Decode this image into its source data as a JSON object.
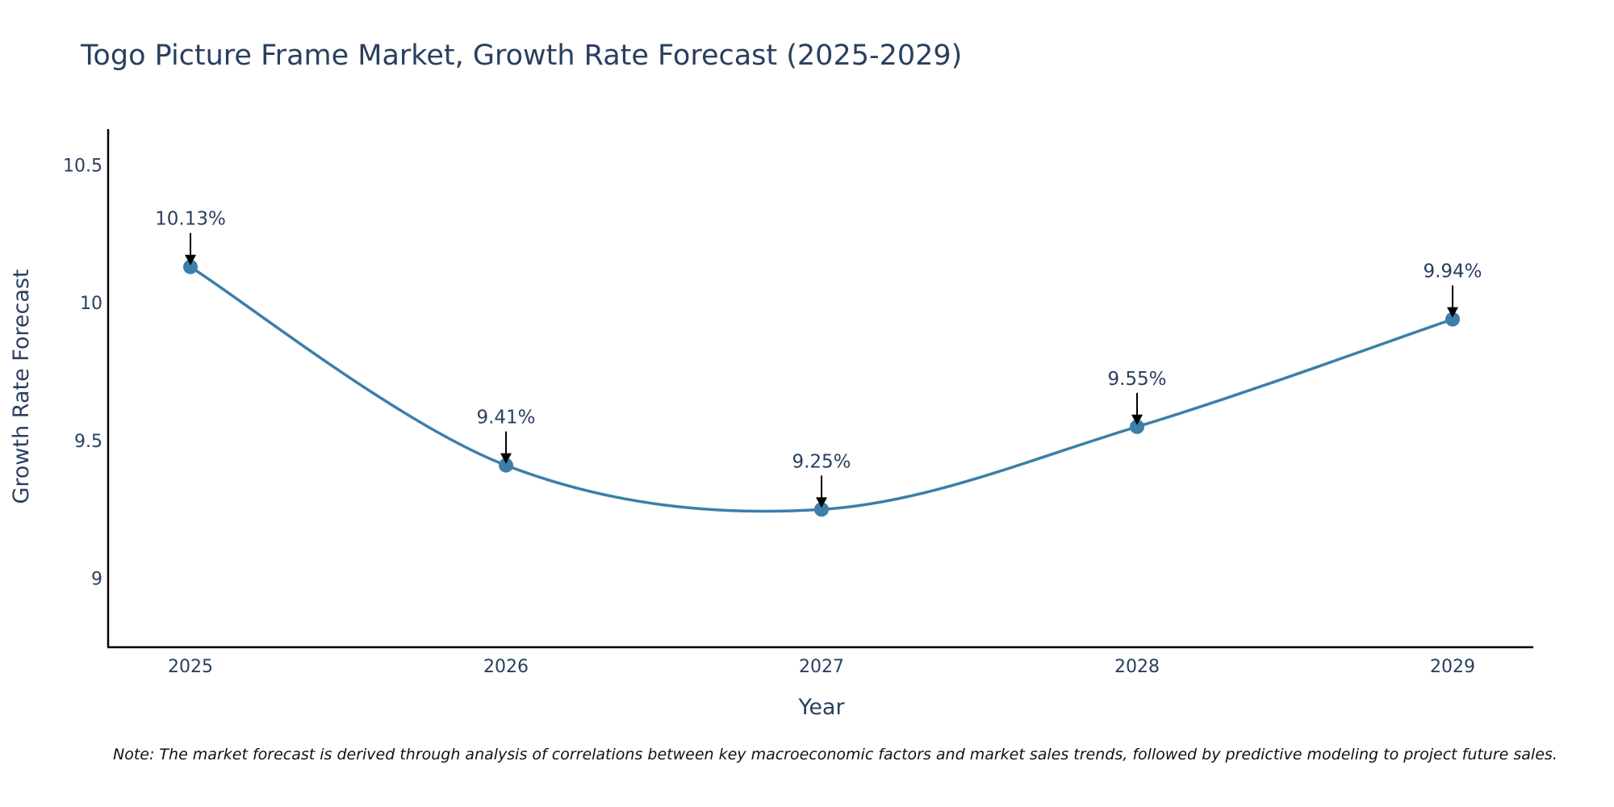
{
  "chart_data": {
    "type": "line",
    "title": "Togo Picture Frame Market, Growth Rate Forecast (2025-2029)",
    "xlabel": "Year",
    "ylabel": "Growth Rate Forecast",
    "categories": [
      "2025",
      "2026",
      "2027",
      "2028",
      "2029"
    ],
    "series": [
      {
        "name": "Growth Rate Forecast",
        "values": [
          10.13,
          9.41,
          9.25,
          9.55,
          9.94
        ],
        "labels": [
          "10.13%",
          "9.41%",
          "9.25%",
          "9.55%",
          "9.94%"
        ]
      }
    ],
    "ylim": [
      8.75,
      10.63
    ],
    "yticks": [
      9,
      9.5,
      10,
      10.5
    ],
    "ytick_labels": [
      "9",
      "9.5",
      "10",
      "10.5"
    ],
    "line_shape": "spline",
    "grid": false,
    "colors": {
      "line": "#3d7eaa",
      "marker": "#3d7eaa",
      "arrow": "#000000",
      "axis": "#000000"
    },
    "note": "Note: The market forecast is derived through analysis of correlations between key macroeconomic factors and market sales trends, followed by predictive modeling to project future sales."
  }
}
